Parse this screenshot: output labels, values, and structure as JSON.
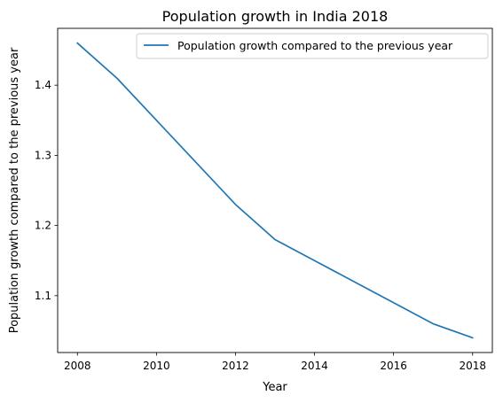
{
  "chart_data": {
    "type": "line",
    "title": "Population growth in India 2018",
    "xlabel": "Year",
    "ylabel": "Population growth compared to the previous year",
    "x": [
      2008,
      2009,
      2010,
      2011,
      2012,
      2013,
      2014,
      2015,
      2016,
      2017,
      2018
    ],
    "series": [
      {
        "name": "Population growth compared to the previous year",
        "color": "#1f77b4",
        "values": [
          1.46,
          1.41,
          1.35,
          1.29,
          1.23,
          1.18,
          1.15,
          1.12,
          1.09,
          1.06,
          1.04
        ]
      }
    ],
    "xlim": [
      2007.5,
      2018.5
    ],
    "ylim": [
      1.019,
      1.481
    ],
    "xticks": [
      "2008",
      "2010",
      "2012",
      "2014",
      "2016",
      "2018"
    ],
    "yticks": [
      "1.1",
      "1.2",
      "1.3",
      "1.4"
    ],
    "grid": false,
    "legend_position": "upper right"
  }
}
